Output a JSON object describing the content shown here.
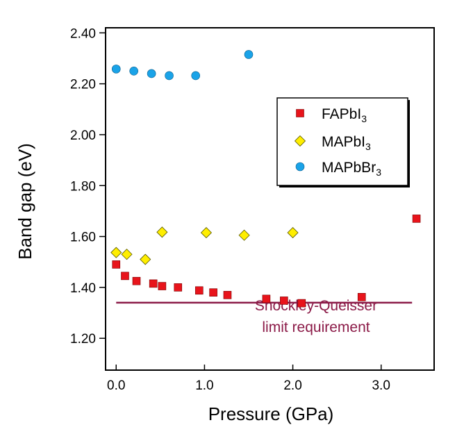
{
  "chart_data": {
    "type": "scatter",
    "xlabel": "Pressure (GPa)",
    "ylabel": "Band gap (eV)",
    "xlim": [
      -0.12,
      3.6
    ],
    "ylim": [
      1.075,
      2.42
    ],
    "xticks": [
      0.0,
      1.0,
      2.0,
      3.0
    ],
    "xtick_labels": [
      "0.0",
      "1.0",
      "2.0",
      "3.0"
    ],
    "yticks": [
      1.2,
      1.4,
      1.6,
      1.8,
      2.0,
      2.2,
      2.4
    ],
    "ytick_labels": [
      "1.20",
      "1.40",
      "1.60",
      "1.80",
      "2.00",
      "2.20",
      "2.40"
    ],
    "grid": false,
    "legend_position": "upper-right",
    "series": [
      {
        "name": "FAPbI3",
        "label_main": "FAPbI",
        "label_sub": "3",
        "marker": "square",
        "color": "#e8141b",
        "x": [
          0.0,
          0.1,
          0.23,
          0.42,
          0.52,
          0.7,
          0.94,
          1.1,
          1.26,
          1.7,
          1.9,
          2.1,
          2.78,
          3.4
        ],
        "y": [
          1.49,
          1.445,
          1.425,
          1.415,
          1.405,
          1.4,
          1.388,
          1.38,
          1.37,
          1.355,
          1.348,
          1.338,
          1.362,
          1.67
        ]
      },
      {
        "name": "MAPbI3",
        "label_main": "MAPbI",
        "label_sub": "3",
        "marker": "diamond",
        "color": "#ffee00",
        "x": [
          0.0,
          0.12,
          0.33,
          0.52,
          1.02,
          1.45,
          2.0
        ],
        "y": [
          1.537,
          1.53,
          1.51,
          1.617,
          1.615,
          1.605,
          1.615
        ]
      },
      {
        "name": "MAPbBr3",
        "label_main": "MAPbBr",
        "label_sub": "3",
        "marker": "circle",
        "color": "#1aa3e8",
        "x": [
          0.0,
          0.2,
          0.4,
          0.6,
          0.9,
          1.5
        ],
        "y": [
          2.258,
          2.25,
          2.24,
          2.232,
          2.232,
          2.315
        ]
      }
    ],
    "reference_line": {
      "y": 1.34,
      "x_range": [
        0.0,
        3.35
      ],
      "color": "#8b1a47",
      "label_line1": "Shockley-Queisser",
      "label_line2": "limit requirement"
    }
  }
}
